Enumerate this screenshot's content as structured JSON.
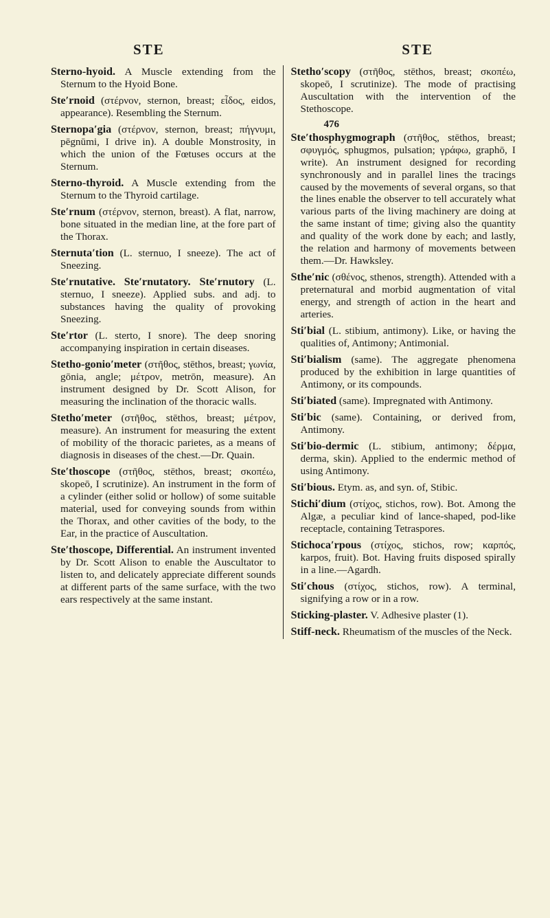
{
  "header": {
    "left": "STE",
    "right": "STE"
  },
  "page_number": "476",
  "entries": [
    {
      "headword": "Sterno-hyoid.",
      "body": " A Muscle extending from the Sternum to the Hyoid Bone."
    },
    {
      "headword": "Steʹrnoid",
      "body": " (στέρνον, sternon, breast; εἶδος, eidos, appearance). Resembling the Sternum."
    },
    {
      "headword": "Sternopaʹgia",
      "body": " (στέρνον, sternon, breast; πήγνυμι, pēgnūmi, I drive in). A double Monstrosity, in which the union of the Fœtuses occurs at the Sternum."
    },
    {
      "headword": "Sterno-thyroid.",
      "body": " A Muscle extending from the Sternum to the Thyroid cartilage."
    },
    {
      "headword": "Steʹrnum",
      "body": " (στέρνον, sternon, breast). A flat, narrow, bone situated in the median line, at the fore part of the Thorax."
    },
    {
      "headword": "Sternutaʹtion",
      "body": " (L. sternuo, I sneeze). The act of Sneezing."
    },
    {
      "headword": "Steʹrnutative.",
      "body": " ",
      "headword2": "Steʹrnutatory. Steʹrnutory",
      "body2": " (L. sternuo, I sneeze). Applied subs. and adj. to substances having the quality of provoking Sneezing."
    },
    {
      "headword": "Steʹrtor",
      "body": " (L. sterto, I snore). The deep snoring accompanying inspiration in certain diseases."
    },
    {
      "headword": "Stetho-gonioʹmeter",
      "body": " (στῆθος, stēthos, breast; γωνία, gōnia, angle; μέτρον, metrōn, measure). An instrument designed by Dr. Scott Alison, for measuring the inclination of the thoracic walls."
    },
    {
      "headword": "Stethoʹmeter",
      "body": " (στῆθος, stēthos, breast; μέτρον, measure). An instrument for measuring the extent of mobility of the thoracic parietes, as a means of diagnosis in diseases of the chest.—Dr. Quain."
    },
    {
      "headword": "Steʹthoscope",
      "body": " (στῆθος, stēthos, breast; σκοπέω, skopeō, I scrutinize). An instrument in the form of a cylinder (either solid or hollow) of some suitable material, used for conveying sounds from within the Thorax, and other cavities of the body, to the Ear, in the practice of Auscultation."
    },
    {
      "headword": "Steʹthoscope, Differential.",
      "body": " An instrument invented by Dr. Scott Alison to enable the Auscultator to listen to, and delicately appreciate different sounds at different parts of the same surface, with the two ears respectively at the same instant."
    },
    {
      "headword": "Stethoʹscopy",
      "body": " (στῆθος, stēthos, breast; σκοπέω, skopeō, I scrutinize). The mode of practising Auscultation with the intervention of the Stethoscope."
    },
    {
      "headword": "Steʹthosphygmograph",
      "body": " (στῆθος, stēthos, breast; σφυγμός, sphugmos, pulsation; γράφω, graphō, I write). An instrument designed for recording synchronously and in parallel lines the tracings caused by the movements of several organs, so that the lines enable the observer to tell accurately what various parts of the living machinery are doing at the same instant of time; giving also the quantity and quality of the work done by each; and lastly, the relation and harmony of movements between them.—Dr. Hawksley."
    },
    {
      "headword": "Stheʹnic",
      "body": " (σθένος, sthenos, strength). Attended with a preternatural and morbid augmentation of vital energy, and strength of action in the heart and arteries."
    },
    {
      "headword": "Stiʹbial",
      "body": " (L. stibium, antimony). Like, or having the qualities of, Antimony; Antimonial."
    },
    {
      "headword": "Stiʹbialism",
      "body": " (same). The aggregate phenomena produced by the exhibition in large quantities of Antimony, or its compounds."
    },
    {
      "headword": "Stiʹbiated",
      "body": " (same). Impregnated with Antimony."
    },
    {
      "headword": "Stiʹbic",
      "body": " (same). Containing, or derived from, Antimony."
    },
    {
      "headword": "Stiʹbio-dermic",
      "body": " (L. stibium, antimony; δέρμα, derma, skin). Applied to the endermic method of using Antimony."
    },
    {
      "headword": "Stiʹbious.",
      "body": " Etym. as, and syn. of, Stibic."
    },
    {
      "headword": "Stichiʹdium",
      "body": " (στίχος, stichos, row). Bot. Among the Algæ, a peculiar kind of lance-shaped, pod-like receptacle, containing Tetraspores."
    },
    {
      "headword": "Stichocaʹrpous",
      "body": " (στίχος, stichos, row; καρπός, karpos, fruit). Bot. Having fruits disposed spirally in a line.—Agardh."
    },
    {
      "headword": "Stiʹchous",
      "body": " (στίχος, stichos, row). A terminal, signifying a row or in a row."
    },
    {
      "headword": "Sticking-plaster.",
      "body": " V. Adhesive plaster (1)."
    },
    {
      "headword": "Stiff-neck.",
      "body": " Rheumatism of the muscles of the Neck."
    }
  ]
}
